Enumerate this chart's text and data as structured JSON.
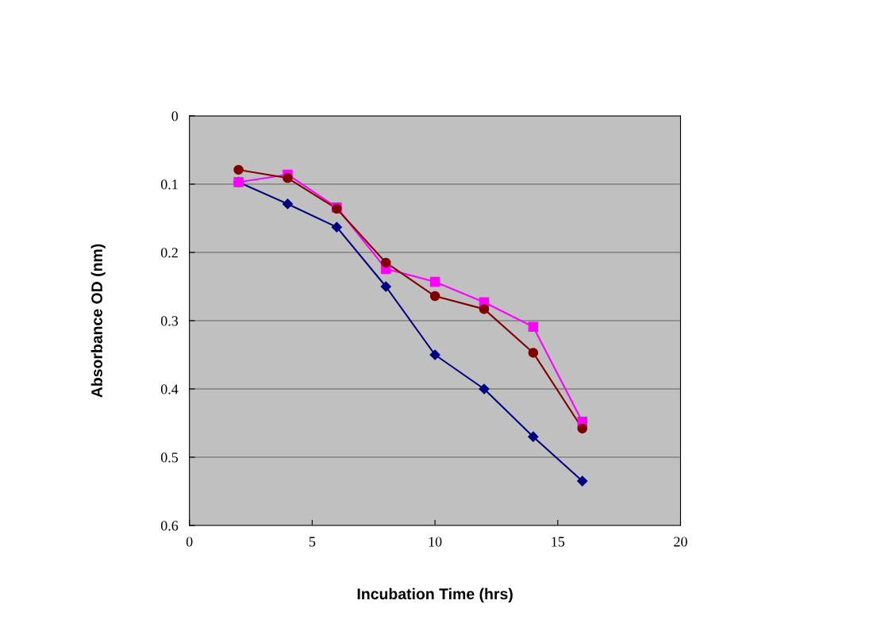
{
  "chart_data": {
    "type": "line",
    "xlabel": "Incubation Time (hrs)",
    "ylabel": "Absorbance OD (nm)",
    "x": [
      2,
      4,
      6,
      8,
      10,
      12,
      14,
      16
    ],
    "series": [
      {
        "color": "#000080",
        "marker": "diamond",
        "values": [
          0.097,
          0.129,
          0.163,
          0.25,
          0.35,
          0.4,
          0.47,
          0.535
        ]
      },
      {
        "color": "#ff00ff",
        "marker": "square",
        "values": [
          0.097,
          0.086,
          0.134,
          0.224,
          0.243,
          0.273,
          0.309,
          0.448
        ]
      },
      {
        "color": "#800000",
        "marker": "circle",
        "values": [
          0.079,
          0.091,
          0.136,
          0.215,
          0.264,
          0.283,
          0.347,
          0.458
        ]
      }
    ],
    "xlim": [
      0,
      20
    ],
    "xticks": [
      0,
      5,
      10,
      15,
      20
    ],
    "ylim": [
      0.6,
      0
    ],
    "yticks": [
      0,
      0.1,
      0.2,
      0.3,
      0.4,
      0.5,
      0.6
    ],
    "grid": "y",
    "legend": false,
    "line_style": "solid"
  }
}
